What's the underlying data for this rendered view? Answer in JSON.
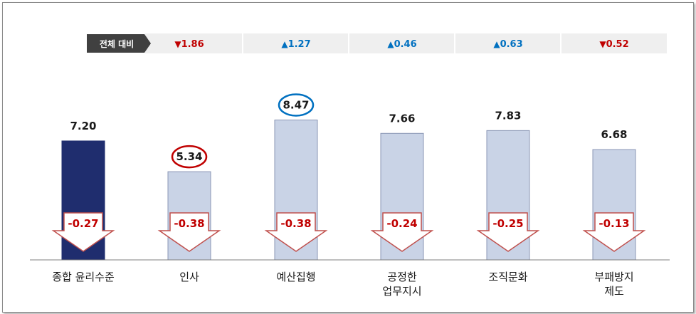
{
  "comparison_label": "전체 대비",
  "colors": {
    "highlight_bar": "#1f2d6e",
    "bar": "#c9d3e6",
    "down": "#c00000",
    "up": "#0070c0",
    "arrow_outline": "#c0504d"
  },
  "chart_data": {
    "type": "bar",
    "categories": [
      "종합 윤리수준",
      "인사",
      "예산집행",
      "공정한\n업무지시",
      "조직문화",
      "부패방지\n제도"
    ],
    "values": [
      7.2,
      5.34,
      8.47,
      7.66,
      7.83,
      6.68
    ],
    "value_labels": [
      "7.20",
      "5.34",
      "8.47",
      "7.66",
      "7.83",
      "6.68"
    ],
    "changes": [
      "-0.27",
      "-0.38",
      "-0.38",
      "-0.24",
      "-0.25",
      "-0.13"
    ],
    "comparison": [
      {
        "direction": "down",
        "marker": "▼",
        "value": "1.86"
      },
      {
        "direction": "up",
        "marker": "▲",
        "value": "1.27"
      },
      {
        "direction": "up",
        "marker": "▲",
        "value": "0.46"
      },
      {
        "direction": "up",
        "marker": "▲",
        "value": "0.63"
      },
      {
        "direction": "down",
        "marker": "▼",
        "value": "0.52"
      }
    ],
    "circled": {
      "min_index": 1,
      "max_index": 2
    },
    "highlight_index": 0,
    "ylim": [
      0,
      10
    ],
    "grid": false
  }
}
